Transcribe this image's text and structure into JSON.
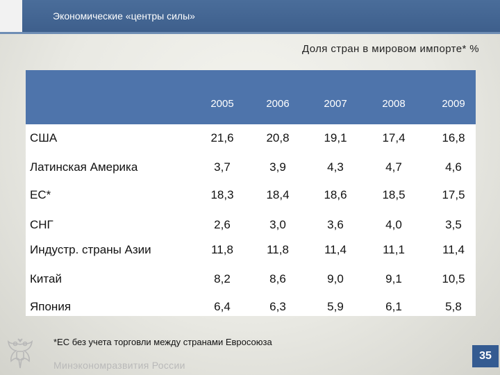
{
  "header": {
    "title": "Экономические «центры силы»"
  },
  "subtitle": "Доля стран в мировом импорте* %",
  "table": {
    "years": [
      "2005",
      "2006",
      "2007",
      "2008",
      "2009"
    ],
    "rows": [
      {
        "label": "США",
        "values": [
          "21,6",
          "20,8",
          "19,1",
          "17,4",
          "16,8"
        ]
      },
      {
        "label": "Латинская Америка",
        "values": [
          "3,7",
          "3,9",
          "4,3",
          "4,7",
          "4,6"
        ]
      },
      {
        "label": "ЕС*",
        "values": [
          "18,3",
          "18,4",
          "18,6",
          "18,5",
          "17,5"
        ]
      },
      {
        "label": "СНГ",
        "values": [
          "2,6",
          "3,0",
          "3,6",
          "4,0",
          "3,5"
        ]
      },
      {
        "label": "Индустр. страны Азии",
        "values": [
          "11,8",
          "11,8",
          "11,4",
          "11,1",
          "11,4"
        ]
      },
      {
        "label": "Китай",
        "values": [
          "8,2",
          "8,6",
          "9,0",
          "9,1",
          "10,5"
        ]
      },
      {
        "label": "Япония",
        "values": [
          "6,4",
          "6,3",
          "5,9",
          "6,1",
          "5,8"
        ]
      }
    ]
  },
  "footnote": "*ЕС без учета торговли между странами Евросоюза",
  "footer": {
    "ministry": "Минэкономразвития России",
    "page_number": "35"
  },
  "colors": {
    "header": "#3e5f8c",
    "table_header": "#4e74ab",
    "page_badge": "#345b91"
  }
}
